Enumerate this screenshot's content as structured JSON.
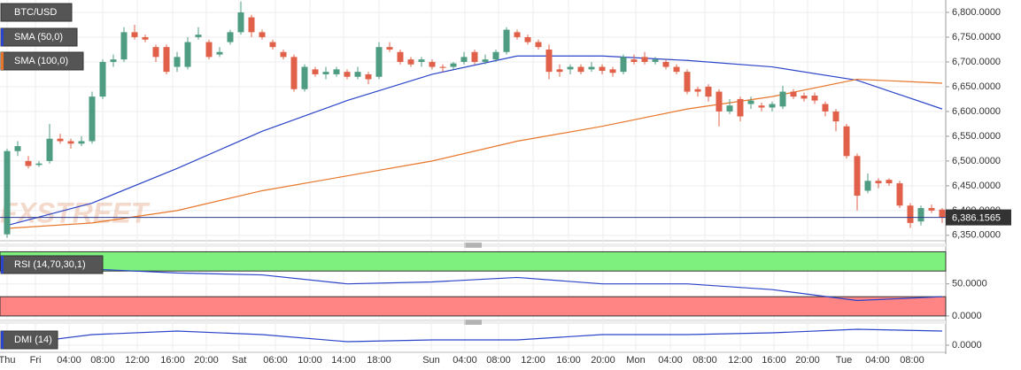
{
  "chart_data": [
    {
      "type": "candlestick",
      "name": "BTC/USD",
      "color_up": "#4e9c82",
      "color_down": "#e0604a",
      "open": [
        6352,
        6520,
        6500,
        6492,
        6500,
        6545,
        6540,
        6535,
        6540,
        6630,
        6700,
        6705,
        6760,
        6750,
        6730,
        6730,
        6690,
        6690,
        6750,
        6740,
        6715,
        6740,
        6760,
        6790,
        6760,
        6740,
        6720,
        6710,
        6645,
        6685,
        6675,
        6675,
        6680,
        6670,
        6675,
        6670,
        6730,
        6720,
        6705,
        6700,
        6700,
        6690,
        6690,
        6700,
        6720,
        6700,
        6705,
        6720,
        6760,
        6750,
        6740,
        6725,
        6685,
        6685,
        6690,
        6685,
        6690,
        6685,
        6680,
        6705,
        6710,
        6700,
        6700,
        6690,
        6680,
        6645,
        6650,
        6640,
        6600,
        6625,
        6615,
        6612,
        6608,
        6610,
        6640,
        6632,
        6632,
        6615,
        6600,
        6570,
        6510,
        6440,
        6460,
        6462,
        6455,
        6410,
        6378,
        6405,
        6402
      ],
      "high": [
        6525,
        6540,
        6510,
        6500,
        6575,
        6555,
        6545,
        6550,
        6640,
        6705,
        6715,
        6770,
        6775,
        6755,
        6735,
        6735,
        6720,
        6750,
        6770,
        6745,
        6730,
        6765,
        6822,
        6795,
        6765,
        6745,
        6725,
        6715,
        6695,
        6690,
        6690,
        6690,
        6685,
        6690,
        6680,
        6740,
        6740,
        6725,
        6710,
        6710,
        6705,
        6695,
        6700,
        6720,
        6725,
        6715,
        6725,
        6770,
        6765,
        6755,
        6745,
        6735,
        6695,
        6695,
        6695,
        6700,
        6695,
        6690,
        6715,
        6715,
        6720,
        6710,
        6705,
        6695,
        6685,
        6650,
        6655,
        6645,
        6625,
        6630,
        6630,
        6618,
        6620,
        6652,
        6645,
        6638,
        6638,
        6620,
        6605,
        6575,
        6515,
        6475,
        6465,
        6465,
        6460,
        6415,
        6410,
        6412,
        6405
      ],
      "low": [
        6345,
        6510,
        6485,
        6488,
        6495,
        6535,
        6525,
        6530,
        6535,
        6625,
        6690,
        6700,
        6745,
        6740,
        6700,
        6675,
        6680,
        6685,
        6745,
        6705,
        6710,
        6735,
        6755,
        6750,
        6745,
        6725,
        6705,
        6640,
        6640,
        6670,
        6665,
        6670,
        6665,
        6665,
        6655,
        6665,
        6720,
        6695,
        6690,
        6690,
        6685,
        6680,
        6685,
        6695,
        6695,
        6695,
        6700,
        6715,
        6745,
        6735,
        6725,
        6665,
        6670,
        6675,
        6675,
        6680,
        6675,
        6670,
        6675,
        6695,
        6695,
        6695,
        6685,
        6675,
        6635,
        6630,
        6620,
        6570,
        6595,
        6580,
        6605,
        6600,
        6600,
        6605,
        6625,
        6620,
        6615,
        6590,
        6560,
        6505,
        6400,
        6435,
        6445,
        6450,
        6405,
        6365,
        6370,
        6395,
        6375
      ],
      "close": [
        6520,
        6530,
        6490,
        6495,
        6545,
        6540,
        6535,
        6540,
        6630,
        6700,
        6705,
        6760,
        6750,
        6745,
        6710,
        6680,
        6710,
        6740,
        6755,
        6710,
        6720,
        6760,
        6800,
        6760,
        6750,
        6730,
        6710,
        6645,
        6690,
        6675,
        6680,
        6685,
        6670,
        6680,
        6665,
        6730,
        6725,
        6700,
        6695,
        6705,
        6690,
        6688,
        6697,
        6710,
        6700,
        6705,
        6720,
        6765,
        6750,
        6740,
        6730,
        6680,
        6680,
        6690,
        6680,
        6690,
        6682,
        6678,
        6710,
        6700,
        6700,
        6705,
        6690,
        6680,
        6640,
        6640,
        6630,
        6600,
        6612,
        6590,
        6622,
        6608,
        6615,
        6640,
        6630,
        6626,
        6622,
        6600,
        6580,
        6510,
        6430,
        6460,
        6455,
        6455,
        6410,
        6375,
        6405,
        6400,
        6386
      ],
      "series": [
        {
          "name": "SMA (50,0)",
          "color": "#2b44c8",
          "x": [
            0,
            8,
            16,
            24,
            32,
            40,
            48,
            56,
            64,
            72,
            80,
            88
          ],
          "values": [
            6370,
            6415,
            6485,
            6560,
            6622,
            6675,
            6712,
            6712,
            6703,
            6690,
            6663,
            6605
          ]
        },
        {
          "name": "SMA (100,0)",
          "color": "#e8762a",
          "x": [
            0,
            8,
            16,
            24,
            32,
            40,
            48,
            56,
            64,
            72,
            80,
            88
          ],
          "values": [
            6364,
            6375,
            6400,
            6440,
            6470,
            6500,
            6540,
            6570,
            6605,
            6630,
            6665,
            6657
          ]
        }
      ],
      "ylim": [
        6339,
        6825
      ],
      "yticks": [
        {
          "value": 6350,
          "label": "6,350.0000"
        },
        {
          "value": 6400,
          "label": "6,400.0000"
        },
        {
          "value": 6450,
          "label": "6,450.0000"
        },
        {
          "value": 6500,
          "label": "6,500.0000"
        },
        {
          "value": 6550,
          "label": "6,550.0000"
        },
        {
          "value": 6600,
          "label": "6,600.0000"
        },
        {
          "value": 6650,
          "label": "6,650.0000"
        },
        {
          "value": 6700,
          "label": "6,700.0000"
        },
        {
          "value": 6750,
          "label": "6,750.0000"
        },
        {
          "value": 6800,
          "label": "6,800.0000"
        }
      ],
      "last": {
        "value": 6386.1565,
        "label": "6,386.1565"
      },
      "watermark": "FXSTREET",
      "grid": true,
      "x_labels": [
        "Thu",
        "Fri",
        "04:00",
        "08:00",
        "12:00",
        "16:00",
        "20:00",
        "Sat",
        "06:00",
        "10:00",
        "14:00",
        "18:00",
        "Sun",
        "04:00",
        "08:00",
        "12:00",
        "16:00",
        "20:00",
        "Mon",
        "04:00",
        "08:00",
        "12:00",
        "16:00",
        "20:00",
        "Tue",
        "04:00",
        "08:00"
      ]
    },
    {
      "type": "line",
      "series": [
        {
          "name": "RSI (14,70,30,1)",
          "color": "#2b44c8",
          "x": [
            0,
            8,
            16,
            24,
            32,
            40,
            48,
            56,
            64,
            72,
            80,
            88
          ],
          "values": [
            74,
            73,
            67,
            64,
            50,
            53,
            60,
            50,
            50,
            41,
            24,
            30
          ]
        }
      ],
      "bands": [
        {
          "from": 70,
          "to": 100,
          "color": "#7ef07e"
        },
        {
          "from": 0,
          "to": 30,
          "color": "#ff8585"
        }
      ],
      "ylim": [
        -7,
        102
      ],
      "yticks": [
        {
          "value": 50,
          "label": "50.0000"
        },
        {
          "value": 0,
          "label": "0.0000"
        }
      ]
    },
    {
      "type": "line",
      "series": [
        {
          "name": "DMI (14)",
          "color": "#2b44c8",
          "x": [
            0,
            8,
            16,
            24,
            32,
            40,
            48,
            56,
            64,
            72,
            80,
            88
          ],
          "values": [
            0,
            12,
            16,
            12,
            4,
            6,
            6,
            12,
            12,
            14,
            18,
            16
          ]
        }
      ],
      "ylim": [
        -8,
        22
      ],
      "yticks": [
        {
          "value": 0,
          "label": "0.0000"
        }
      ]
    }
  ]
}
